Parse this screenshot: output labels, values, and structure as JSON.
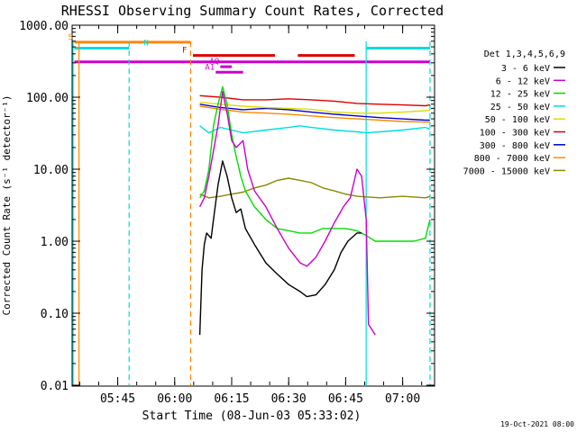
{
  "chart_data": {
    "type": "line",
    "title": "RHESSI Observing Summary Count Rates, Corrected",
    "xlabel": "Start Time (08-Jun-03 05:33:02)",
    "ylabel": "Corrected Count Rate (s⁻¹ detector⁻¹)",
    "yscale": "log",
    "ylim": [
      0.01,
      1000
    ],
    "xlim": [
      5.55,
      7.14
    ],
    "y_ticks": [
      {
        "v": 1000,
        "label": "1000.00"
      },
      {
        "v": 100,
        "label": "100.00"
      },
      {
        "v": 10,
        "label": "10.00"
      },
      {
        "v": 1,
        "label": "1.00"
      },
      {
        "v": 0.1,
        "label": "0.10"
      },
      {
        "v": 0.01,
        "label": "0.01"
      }
    ],
    "x_ticks": [
      {
        "v": 5.75,
        "label": "05:45"
      },
      {
        "v": 6.0,
        "label": "06:00"
      },
      {
        "v": 6.25,
        "label": "06:15"
      },
      {
        "v": 6.5,
        "label": "06:30"
      },
      {
        "v": 6.75,
        "label": "06:45"
      },
      {
        "v": 7.0,
        "label": "07:00"
      }
    ],
    "legend_title": "Det 1,3,4,5,6,9",
    "legend_position": "right",
    "series": [
      {
        "name": "3 - 6 keV",
        "color": "#000000",
        "points": [
          [
            6.11,
            0.05
          ],
          [
            6.12,
            0.4
          ],
          [
            6.13,
            0.9
          ],
          [
            6.14,
            1.3
          ],
          [
            6.16,
            1.1
          ],
          [
            6.17,
            2.0
          ],
          [
            6.19,
            6
          ],
          [
            6.21,
            13
          ],
          [
            6.23,
            8
          ],
          [
            6.25,
            4
          ],
          [
            6.27,
            2.5
          ],
          [
            6.29,
            2.8
          ],
          [
            6.31,
            1.5
          ],
          [
            6.35,
            0.9
          ],
          [
            6.4,
            0.5
          ],
          [
            6.45,
            0.35
          ],
          [
            6.5,
            0.25
          ],
          [
            6.55,
            0.2
          ],
          [
            6.58,
            0.17
          ],
          [
            6.62,
            0.18
          ],
          [
            6.66,
            0.25
          ],
          [
            6.7,
            0.4
          ],
          [
            6.73,
            0.7
          ],
          [
            6.76,
            1.0
          ],
          [
            6.8,
            1.3
          ],
          [
            6.82,
            1.3
          ]
        ]
      },
      {
        "name": "6 - 12 keV",
        "color": "#cc00cc",
        "points": [
          [
            6.11,
            3
          ],
          [
            6.13,
            4
          ],
          [
            6.15,
            8
          ],
          [
            6.19,
            40
          ],
          [
            6.21,
            120
          ],
          [
            6.23,
            60
          ],
          [
            6.25,
            25
          ],
          [
            6.27,
            20
          ],
          [
            6.3,
            25
          ],
          [
            6.32,
            10
          ],
          [
            6.35,
            5
          ],
          [
            6.4,
            3
          ],
          [
            6.45,
            1.5
          ],
          [
            6.5,
            0.8
          ],
          [
            6.55,
            0.5
          ],
          [
            6.58,
            0.45
          ],
          [
            6.62,
            0.6
          ],
          [
            6.66,
            1.0
          ],
          [
            6.7,
            1.8
          ],
          [
            6.74,
            3
          ],
          [
            6.77,
            4
          ],
          [
            6.8,
            10
          ],
          [
            6.82,
            8
          ],
          [
            6.84,
            2
          ],
          [
            6.85,
            0.07
          ],
          [
            6.88,
            0.05
          ]
        ]
      },
      {
        "name": "12 - 25 keV",
        "color": "#00dd00",
        "points": [
          [
            6.11,
            4
          ],
          [
            6.13,
            5
          ],
          [
            6.15,
            10
          ],
          [
            6.17,
            40
          ],
          [
            6.19,
            80
          ],
          [
            6.21,
            140
          ],
          [
            6.23,
            80
          ],
          [
            6.25,
            30
          ],
          [
            6.27,
            15
          ],
          [
            6.29,
            8
          ],
          [
            6.31,
            5
          ],
          [
            6.35,
            3
          ],
          [
            6.4,
            2
          ],
          [
            6.45,
            1.5
          ],
          [
            6.5,
            1.4
          ],
          [
            6.55,
            1.3
          ],
          [
            6.6,
            1.3
          ],
          [
            6.65,
            1.5
          ],
          [
            6.7,
            1.5
          ],
          [
            6.75,
            1.5
          ],
          [
            6.8,
            1.4
          ],
          [
            6.84,
            1.2
          ],
          [
            6.88,
            1.0
          ],
          [
            6.95,
            1.0
          ],
          [
            7.05,
            1.0
          ],
          [
            7.1,
            1.1
          ],
          [
            7.12,
            2.0
          ]
        ]
      },
      {
        "name": "25 - 50 keV",
        "color": "#00dddd",
        "points": [
          [
            6.11,
            40
          ],
          [
            6.15,
            32
          ],
          [
            6.2,
            38
          ],
          [
            6.25,
            35
          ],
          [
            6.3,
            32
          ],
          [
            6.4,
            35
          ],
          [
            6.5,
            38
          ],
          [
            6.55,
            40
          ],
          [
            6.6,
            38
          ],
          [
            6.7,
            35
          ],
          [
            6.8,
            33
          ],
          [
            6.84,
            32
          ],
          [
            6.9,
            33
          ],
          [
            7.0,
            35
          ],
          [
            7.1,
            38
          ],
          [
            7.12,
            36
          ]
        ]
      },
      {
        "name": "50 - 100 keV",
        "color": "#dddd00",
        "points": [
          [
            6.11,
            85
          ],
          [
            6.2,
            80
          ],
          [
            6.3,
            75
          ],
          [
            6.4,
            72
          ],
          [
            6.5,
            70
          ],
          [
            6.6,
            68
          ],
          [
            6.7,
            62
          ],
          [
            6.8,
            60
          ],
          [
            6.9,
            60
          ],
          [
            7.0,
            62
          ],
          [
            7.1,
            65
          ],
          [
            7.12,
            66
          ]
        ]
      },
      {
        "name": "100 - 300 keV",
        "color": "#dd0000",
        "points": [
          [
            6.11,
            105
          ],
          [
            6.2,
            100
          ],
          [
            6.3,
            92
          ],
          [
            6.4,
            92
          ],
          [
            6.5,
            95
          ],
          [
            6.6,
            92
          ],
          [
            6.7,
            88
          ],
          [
            6.8,
            82
          ],
          [
            6.9,
            80
          ],
          [
            7.0,
            78
          ],
          [
            7.1,
            76
          ],
          [
            7.12,
            78
          ]
        ]
      },
      {
        "name": "300 - 800 keV",
        "color": "#0000cc",
        "points": [
          [
            6.11,
            80
          ],
          [
            6.2,
            72
          ],
          [
            6.3,
            67
          ],
          [
            6.4,
            70
          ],
          [
            6.5,
            67
          ],
          [
            6.6,
            62
          ],
          [
            6.7,
            58
          ],
          [
            6.8,
            55
          ],
          [
            6.9,
            52
          ],
          [
            7.0,
            50
          ],
          [
            7.1,
            48
          ],
          [
            7.12,
            48
          ]
        ]
      },
      {
        "name": "800 - 7000 keV",
        "color": "#ff8800",
        "points": [
          [
            6.11,
            75
          ],
          [
            6.2,
            68
          ],
          [
            6.3,
            62
          ],
          [
            6.4,
            60
          ],
          [
            6.5,
            58
          ],
          [
            6.6,
            55
          ],
          [
            6.7,
            52
          ],
          [
            6.8,
            50
          ],
          [
            6.9,
            48
          ],
          [
            7.0,
            46
          ],
          [
            7.1,
            45
          ],
          [
            7.12,
            45
          ]
        ]
      },
      {
        "name": "7000 - 15000 keV",
        "color": "#888800",
        "points": [
          [
            6.11,
            4.5
          ],
          [
            6.15,
            4.0
          ],
          [
            6.2,
            4.2
          ],
          [
            6.25,
            4.5
          ],
          [
            6.3,
            4.8
          ],
          [
            6.35,
            5.5
          ],
          [
            6.4,
            6.0
          ],
          [
            6.45,
            7.0
          ],
          [
            6.5,
            7.5
          ],
          [
            6.55,
            7.0
          ],
          [
            6.6,
            6.5
          ],
          [
            6.65,
            5.5
          ],
          [
            6.7,
            5.0
          ],
          [
            6.75,
            4.5
          ],
          [
            6.8,
            4.2
          ],
          [
            6.9,
            4.0
          ],
          [
            7.0,
            4.2
          ],
          [
            7.1,
            4.0
          ],
          [
            7.12,
            4.2
          ]
        ]
      }
    ],
    "flag_bars": [
      {
        "label": "S",
        "color": "#ff8800",
        "value": 580,
        "segments": [
          [
            5.56,
            6.07
          ]
        ]
      },
      {
        "label": "N",
        "color": "#00dddd",
        "value": 480,
        "segments": [
          [
            5.56,
            5.8
          ],
          [
            6.84,
            7.12
          ]
        ]
      },
      {
        "label": "F",
        "color": "#dd0000",
        "value": 380,
        "segments": [
          [
            6.08,
            6.44
          ],
          [
            6.54,
            6.79
          ]
        ]
      },
      {
        "label": "",
        "color": "#cc00cc",
        "value": 310,
        "segments": [
          [
            5.56,
            7.12
          ]
        ]
      },
      {
        "label": "AQ",
        "color": "#cc00cc",
        "value": 265,
        "segments": [
          [
            6.2,
            6.25
          ]
        ]
      },
      {
        "label": "A1",
        "color": "#cc00cc",
        "value": 222,
        "segments": [
          [
            6.18,
            6.3
          ]
        ]
      }
    ],
    "vlines": [
      {
        "x": 5.554,
        "color": "#00dddd",
        "style": "solid"
      },
      {
        "x": 5.58,
        "color": "#ff8800",
        "style": "solid"
      },
      {
        "x": 5.8,
        "color": "#00dddd",
        "style": "dashed"
      },
      {
        "x": 6.07,
        "color": "#ff8800",
        "style": "dashed"
      },
      {
        "x": 6.84,
        "color": "#00dddd",
        "style": "solid"
      },
      {
        "x": 7.12,
        "color": "#00dddd",
        "style": "dashed"
      }
    ],
    "footer_date": "19-Oct-2021 08:00"
  }
}
